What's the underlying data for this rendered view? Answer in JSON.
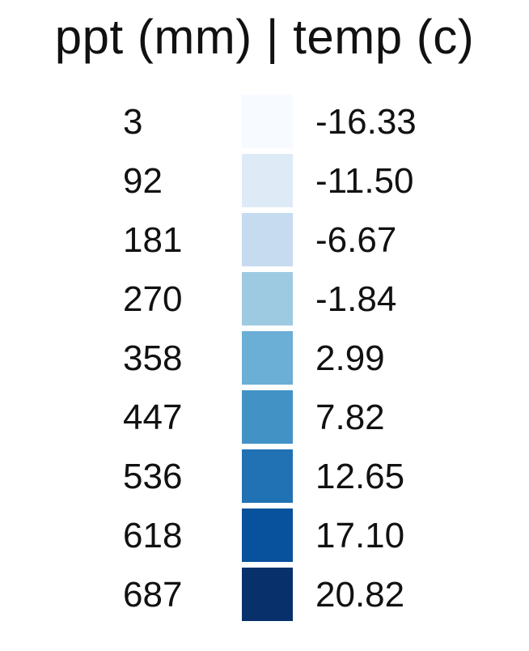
{
  "chart_data": {
    "type": "table",
    "title": "ppt (mm) | temp (c)",
    "columns": [
      "ppt (mm)",
      "color",
      "temp (c)"
    ],
    "rows": [
      {
        "ppt": "3",
        "temp": "-16.33",
        "color": "#f7fbff"
      },
      {
        "ppt": "92",
        "temp": "-11.50",
        "color": "#deebf7"
      },
      {
        "ppt": "181",
        "temp": "-6.67",
        "color": "#c6dbef"
      },
      {
        "ppt": "270",
        "temp": "-1.84",
        "color": "#9ecae1"
      },
      {
        "ppt": "358",
        "temp": "2.99",
        "color": "#6baed6"
      },
      {
        "ppt": "447",
        "temp": "7.82",
        "color": "#4292c6"
      },
      {
        "ppt": "536",
        "temp": "12.65",
        "color": "#2171b5"
      },
      {
        "ppt": "618",
        "temp": "17.10",
        "color": "#08519c"
      },
      {
        "ppt": "687",
        "temp": "20.82",
        "color": "#08306b"
      }
    ]
  }
}
